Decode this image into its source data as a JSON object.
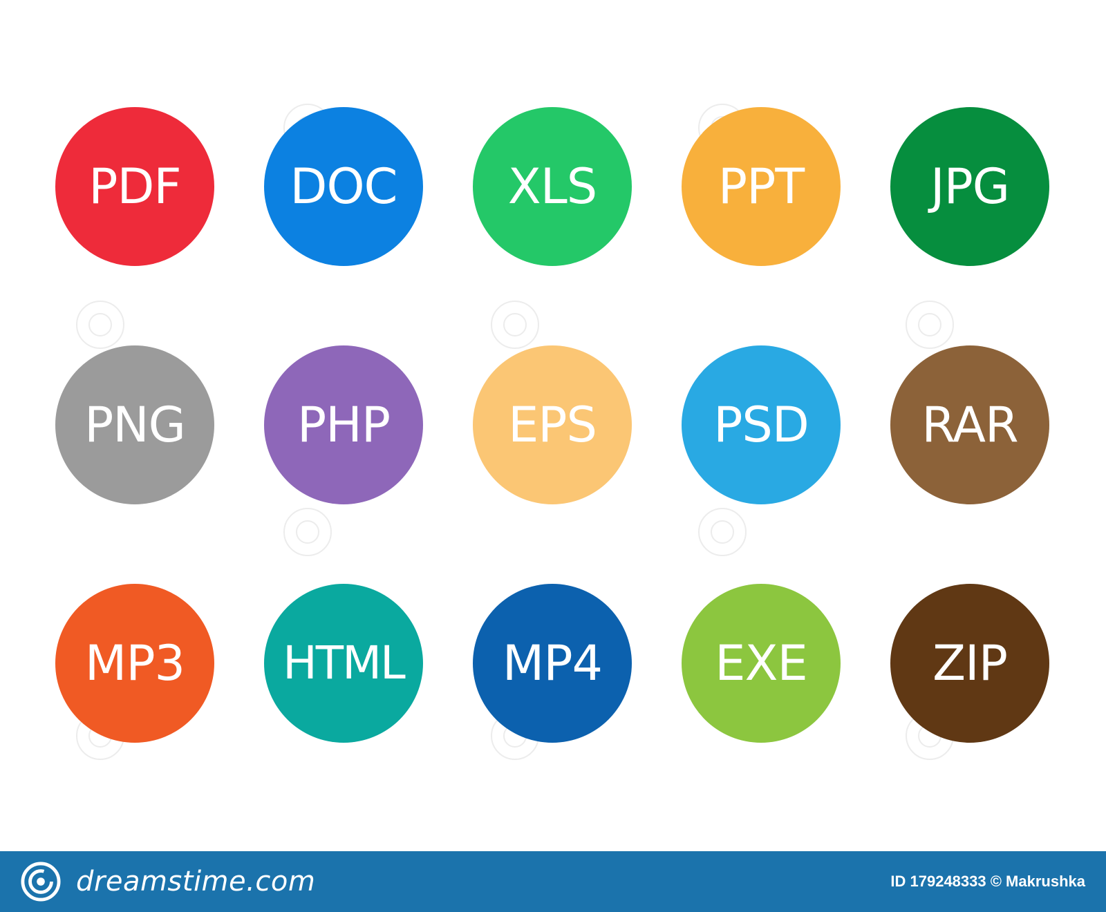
{
  "icons": [
    {
      "label": "PDF",
      "color": "#ee2b3a"
    },
    {
      "label": "DOC",
      "color": "#0c81e1"
    },
    {
      "label": "XLS",
      "color": "#24c868"
    },
    {
      "label": "PPT",
      "color": "#f8b03c"
    },
    {
      "label": "JPG",
      "color": "#068e3e"
    },
    {
      "label": "PNG",
      "color": "#9b9b9b"
    },
    {
      "label": "PHP",
      "color": "#8e67b9"
    },
    {
      "label": "EPS",
      "color": "#fbc674"
    },
    {
      "label": "PSD",
      "color": "#29a9e3"
    },
    {
      "label": "RAR",
      "color": "#8c6239"
    },
    {
      "label": "MP3",
      "color": "#f05a24"
    },
    {
      "label": "HTML",
      "color": "#0aa99f"
    },
    {
      "label": "MP4",
      "color": "#0c61ae"
    },
    {
      "label": "EXE",
      "color": "#8cc63f"
    },
    {
      "label": "ZIP",
      "color": "#603814"
    }
  ],
  "footer": {
    "brand": "dreamstime.com",
    "credit": "ID 179248333 © Makrushka",
    "background_color": "#1b73ac",
    "logo_icon": "spiral-logo-icon"
  }
}
